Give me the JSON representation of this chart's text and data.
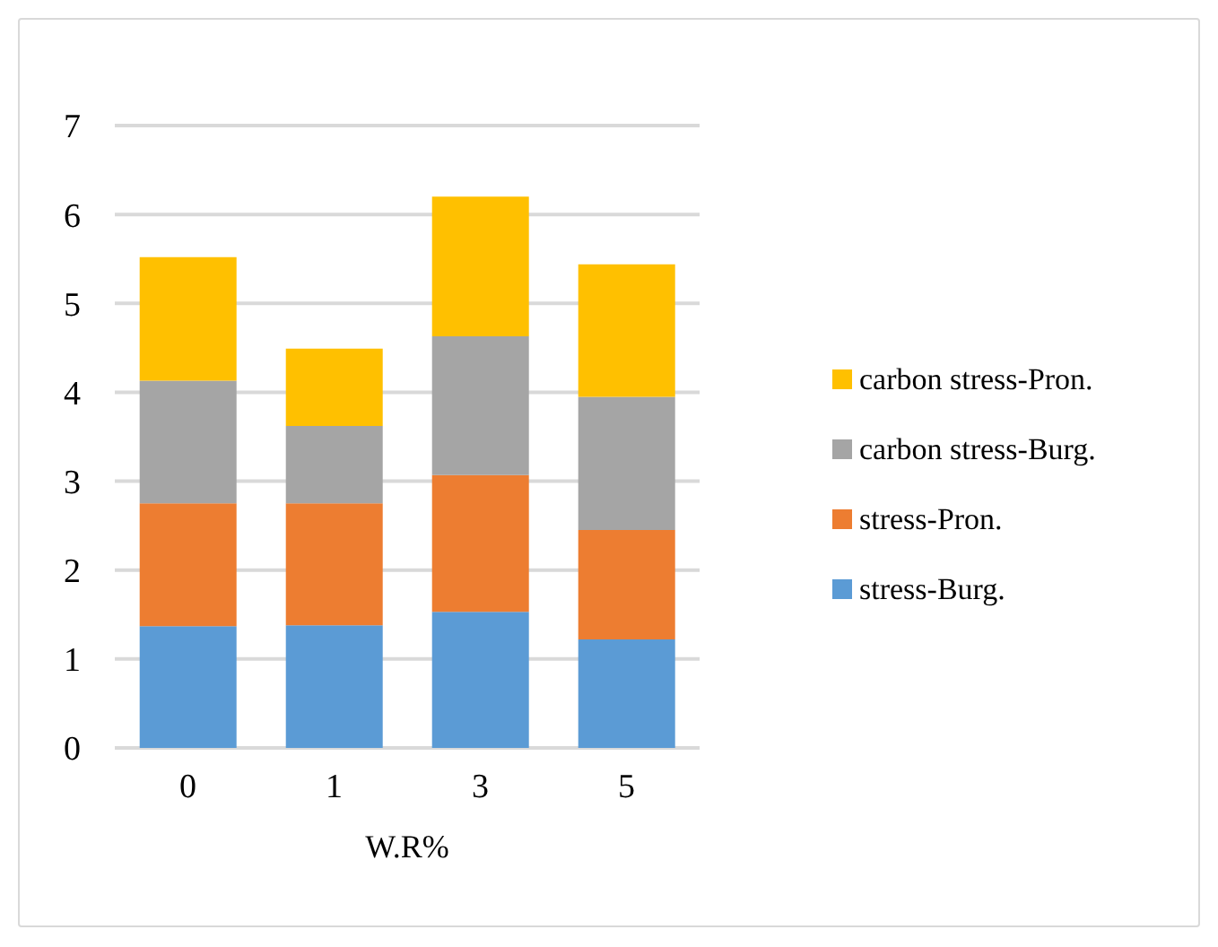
{
  "chart_data": {
    "type": "bar",
    "stacked": true,
    "categories": [
      "0",
      "1",
      "3",
      "5"
    ],
    "xlabel": "W.R%",
    "ylim": [
      0,
      7
    ],
    "yticks": [
      0,
      1,
      2,
      3,
      4,
      5,
      6,
      7
    ],
    "grid": "y",
    "legend": "right",
    "series": [
      {
        "name": "stress-Burg.",
        "color": "#5b9bd5",
        "values": [
          1.37,
          1.38,
          1.53,
          1.22
        ]
      },
      {
        "name": "stress-Pron.",
        "color": "#ed7d31",
        "values": [
          1.38,
          1.37,
          1.54,
          1.23
        ]
      },
      {
        "name": "carbon stress-Burg.",
        "color": "#a5a5a5",
        "values": [
          1.38,
          0.87,
          1.56,
          1.5
        ]
      },
      {
        "name": "carbon stress-Pron.",
        "color": "#ffc000",
        "values": [
          1.39,
          0.87,
          1.57,
          1.49
        ]
      }
    ]
  }
}
